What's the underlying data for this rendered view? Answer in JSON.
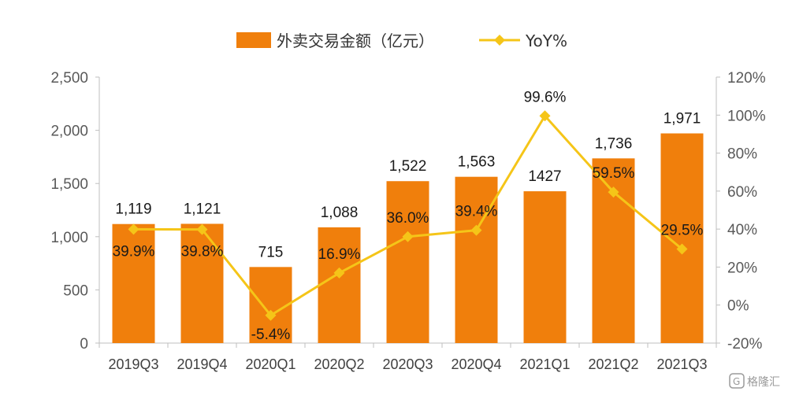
{
  "chart_data": {
    "type": "bar",
    "categories": [
      "2019Q3",
      "2019Q4",
      "2020Q1",
      "2020Q2",
      "2020Q3",
      "2020Q4",
      "2021Q1",
      "2021Q2",
      "2021Q3"
    ],
    "series": [
      {
        "name": "外卖交易金额（亿元）",
        "type": "bar",
        "axis": "left",
        "values": [
          1119,
          1121,
          715,
          1088,
          1522,
          1563,
          1427,
          1736,
          1971
        ],
        "labels": [
          "1,119",
          "1,121",
          "715",
          "1,088",
          "1,522",
          "1,563",
          "1427",
          "1,736",
          "1,971"
        ],
        "color": "#F07F0C"
      },
      {
        "name": "YoY%",
        "type": "line",
        "axis": "right",
        "values": [
          39.9,
          39.8,
          -5.4,
          16.9,
          36.0,
          39.4,
          99.6,
          59.5,
          29.5
        ],
        "labels": [
          "39.9%",
          "39.8%",
          "-5.4%",
          "16.9%",
          "36.0%",
          "39.4%",
          "99.6%",
          "59.5%",
          "29.5%"
        ],
        "color": "#F5C518"
      }
    ],
    "y_left": {
      "ylim": [
        0,
        2500
      ],
      "ticks": [
        "0",
        "500",
        "1,000",
        "1,500",
        "2,000",
        "2,500"
      ],
      "tick_values": [
        0,
        500,
        1000,
        1500,
        2000,
        2500
      ]
    },
    "y_right": {
      "ylim": [
        -20,
        120
      ],
      "ticks": [
        "-20%",
        "0%",
        "20%",
        "40%",
        "60%",
        "80%",
        "100%",
        "120%"
      ],
      "tick_values": [
        -20,
        0,
        20,
        40,
        60,
        80,
        100,
        120
      ]
    },
    "legend_position": "top-center",
    "grid": false
  },
  "watermark": {
    "text": "格隆汇",
    "icon": "gelonghui-logo-icon"
  }
}
